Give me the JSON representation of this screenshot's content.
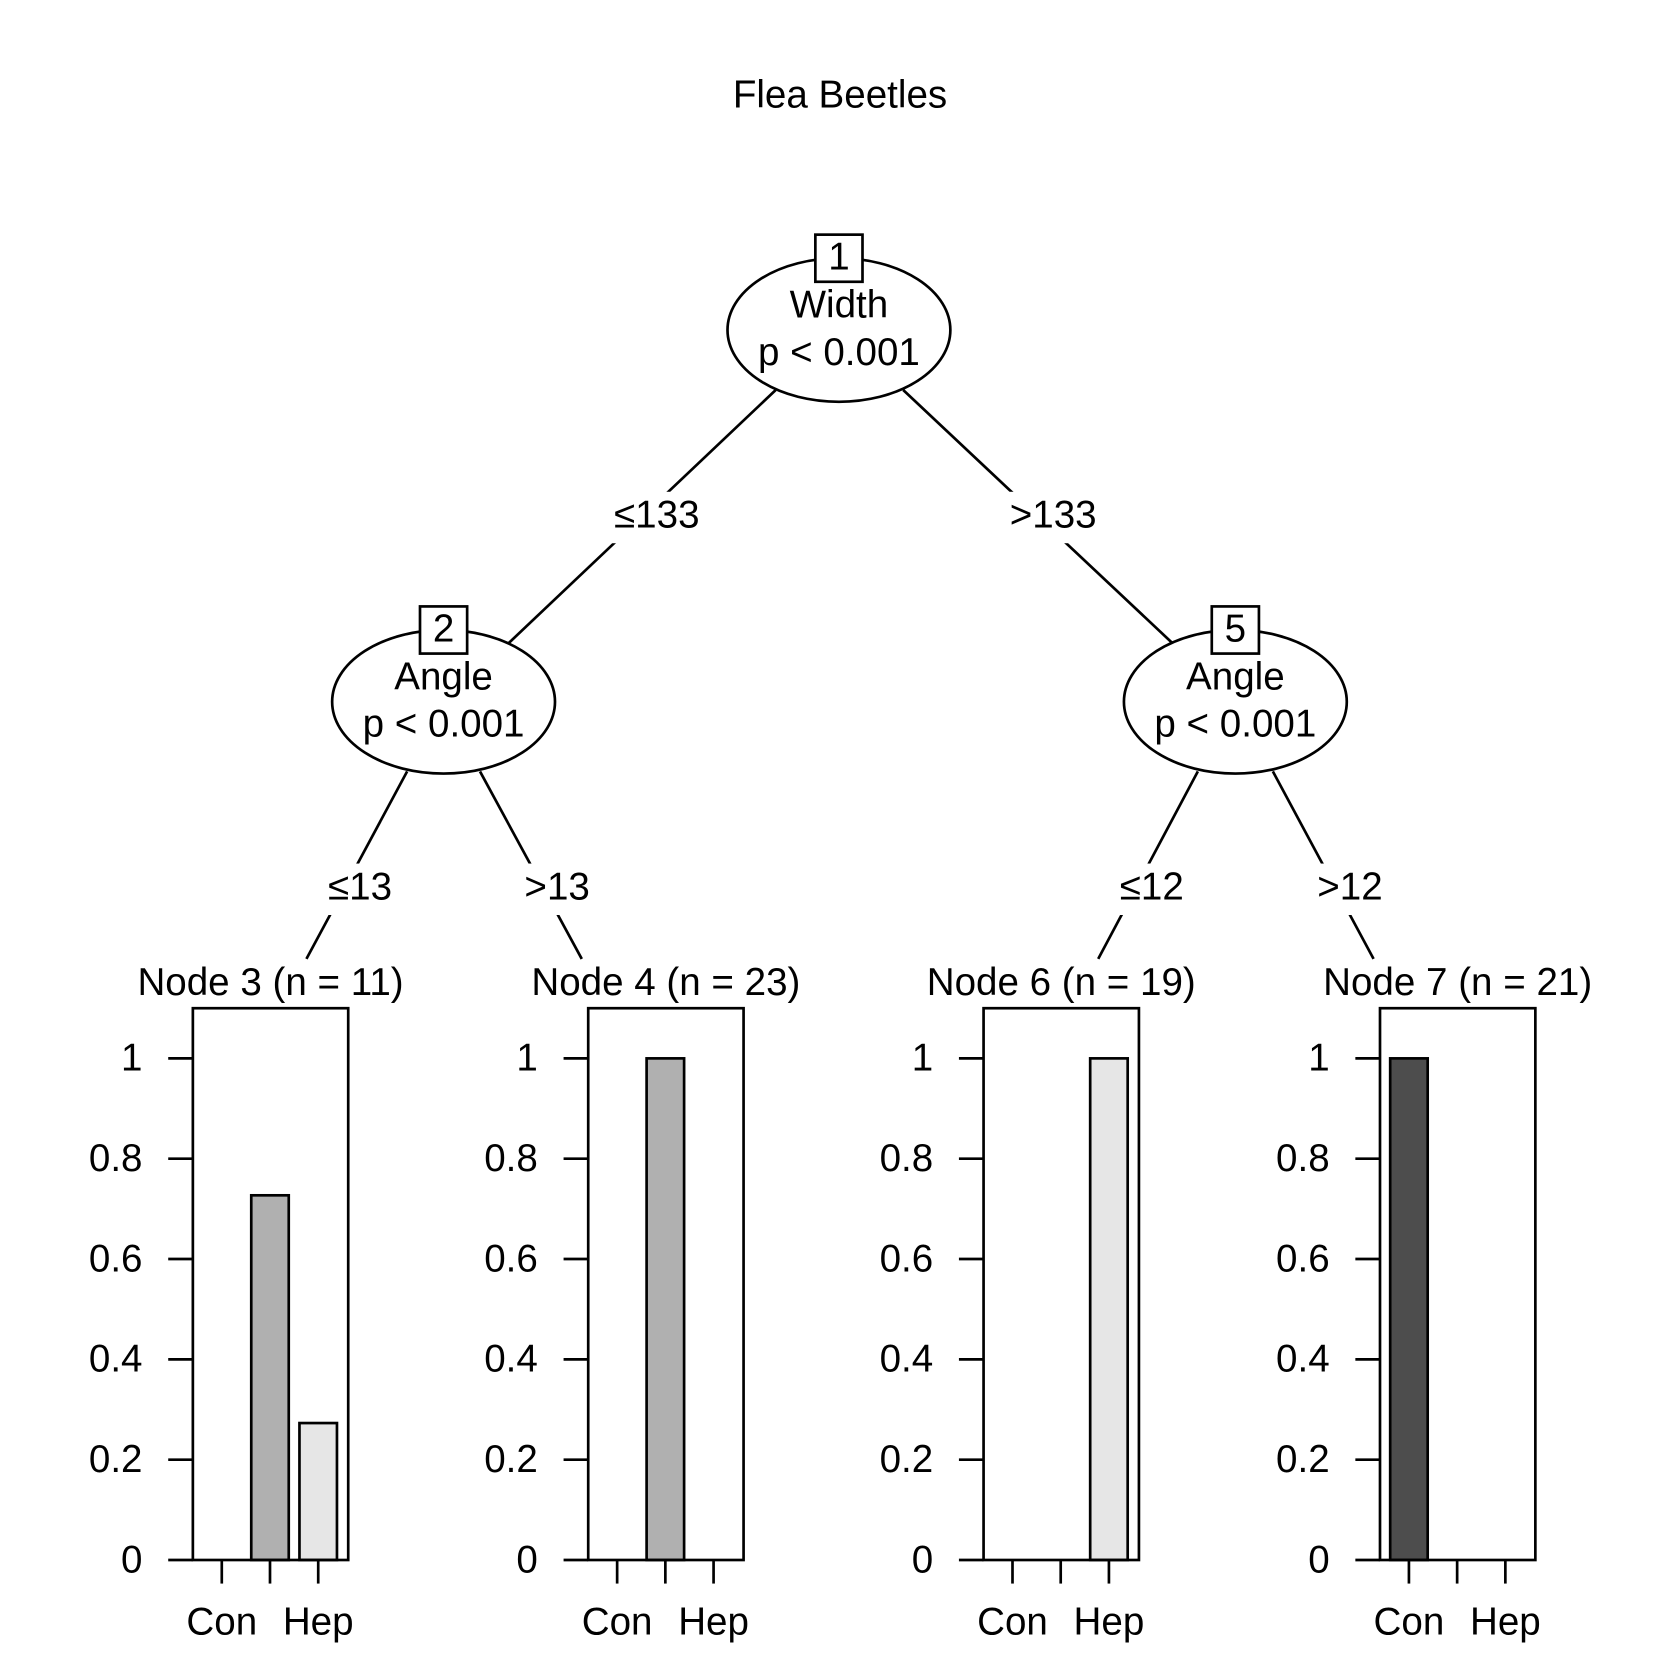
{
  "title": "Flea Beetles",
  "nodes": [
    {
      "id": "1",
      "variable": "Width",
      "p_value": "p < 0.001"
    },
    {
      "id": "2",
      "variable": "Angle",
      "p_value": "p < 0.001"
    },
    {
      "id": "5",
      "variable": "Angle",
      "p_value": "p < 0.001"
    }
  ],
  "edges": [
    {
      "label": "≤133"
    },
    {
      "label": ">133"
    },
    {
      "label": "≤13"
    },
    {
      "label": ">13"
    },
    {
      "label": "≤12"
    },
    {
      "label": ">12"
    }
  ],
  "chart_data": [
    {
      "type": "bar",
      "title": "Node 3 (n = 11)",
      "categories": [
        "Con",
        null,
        "Hep"
      ],
      "values": [
        0,
        0.727,
        0.273
      ],
      "colors": [
        "#4d4d4d",
        "#b0b0b0",
        "#e6e6e6"
      ],
      "ylim": [
        0,
        1.1
      ],
      "yticks": [
        0,
        0.2,
        0.4,
        0.6,
        0.8,
        1
      ]
    },
    {
      "type": "bar",
      "title": "Node 4 (n = 23)",
      "categories": [
        "Con",
        null,
        "Hep"
      ],
      "values": [
        0,
        1,
        0
      ],
      "colors": [
        "#4d4d4d",
        "#b0b0b0",
        "#e6e6e6"
      ],
      "ylim": [
        0,
        1.1
      ],
      "yticks": [
        0,
        0.2,
        0.4,
        0.6,
        0.8,
        1
      ]
    },
    {
      "type": "bar",
      "title": "Node 6 (n = 19)",
      "categories": [
        "Con",
        null,
        "Hep"
      ],
      "values": [
        0,
        0,
        1
      ],
      "colors": [
        "#4d4d4d",
        "#b0b0b0",
        "#e6e6e6"
      ],
      "ylim": [
        0,
        1.1
      ],
      "yticks": [
        0,
        0.2,
        0.4,
        0.6,
        0.8,
        1
      ]
    },
    {
      "type": "bar",
      "title": "Node 7 (n = 21)",
      "categories": [
        "Con",
        null,
        "Hep"
      ],
      "values": [
        1,
        0,
        0
      ],
      "colors": [
        "#4d4d4d",
        "#b0b0b0",
        "#e6e6e6"
      ],
      "ylim": [
        0,
        1.1
      ],
      "yticks": [
        0,
        0.2,
        0.4,
        0.6,
        0.8,
        1
      ]
    }
  ]
}
